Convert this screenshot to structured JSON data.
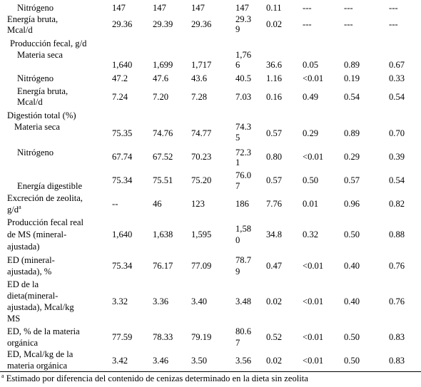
{
  "rows": [
    {
      "label": [
        "Nitrógeno"
      ],
      "c1": "147",
      "c2": "147",
      "c3": "147",
      "c4": [
        "147"
      ],
      "sem": "0.11",
      "p1": "---",
      "p2": "---",
      "p3": "---"
    },
    {
      "label": [
        "Energía bruta,",
        "Mcal/d"
      ],
      "c1": "29.36",
      "c2": "29.39",
      "c3": "29.36",
      "c4": [
        "29.3",
        "9"
      ],
      "sem": "0.02",
      "p1": "---",
      "p2": "---",
      "p3": "---"
    },
    {
      "label": [
        "Producción fecal, g/d"
      ],
      "c1": "",
      "c2": "",
      "c3": "",
      "c4": [
        ""
      ],
      "sem": "",
      "p1": "",
      "p2": "",
      "p3": ""
    },
    {
      "label": [
        "Materia seca"
      ],
      "c1": "1,640",
      "c2": "1,699",
      "c3": "1,717",
      "c4": [
        "1,76",
        "6"
      ],
      "sem": "36.6",
      "p1": "0.05",
      "p2": "0.89",
      "p3": "0.67"
    },
    {
      "label": [
        "Nitrógeno"
      ],
      "c1": "47.2",
      "c2": "47.6",
      "c3": "43.6",
      "c4": [
        "40.5"
      ],
      "sem": "1.16",
      "p1": "<0.01",
      "p2": "0.19",
      "p3": "0.33"
    },
    {
      "label": [
        "Energía bruta,",
        "Mcal/d"
      ],
      "c1": "7.24",
      "c2": "7.20",
      "c3": "7.28",
      "c4": [
        "7.03"
      ],
      "sem": "0.16",
      "p1": "0.49",
      "p2": "0.54",
      "p3": "0.54"
    },
    {
      "label": [
        "Digestión total (%)"
      ],
      "c1": "",
      "c2": "",
      "c3": "",
      "c4": [
        ""
      ],
      "sem": "",
      "p1": "",
      "p2": "",
      "p3": ""
    },
    {
      "label": [
        "Materia seca"
      ],
      "c1": "75.35",
      "c2": "74.76",
      "c3": "74.77",
      "c4": [
        "74.3",
        "5"
      ],
      "sem": "0.57",
      "p1": "0.29",
      "p2": "0.89",
      "p3": "0.70"
    },
    {
      "label": [
        "Nitrógeno"
      ],
      "c1": "67.74",
      "c2": "67.52",
      "c3": "70.23",
      "c4": [
        "72.3",
        "1"
      ],
      "sem": "0.80",
      "p1": "<0.01",
      "p2": "0.29",
      "p3": "0.39"
    },
    {
      "label": [
        "Energía digestible"
      ],
      "c1": "75.34",
      "c2": "75.51",
      "c3": "75.20",
      "c4": [
        "76.0",
        "7"
      ],
      "sem": "0.57",
      "p1": "0.50",
      "p2": "0.57",
      "p3": "0.54"
    },
    {
      "label": [
        "Excreción de zeolita,",
        "g/d"
      ],
      "label_sup": "a",
      "c1": "--",
      "c2": "46",
      "c3": "123",
      "c4": [
        "186"
      ],
      "sem": "7.76",
      "p1": "0.01",
      "p2": "0.96",
      "p3": "0.82"
    },
    {
      "label": [
        "Producción fecal real",
        "de MS (mineral-",
        "ajustada)"
      ],
      "c1": "1,640",
      "c2": "1,638",
      "c3": "1,595",
      "c4": [
        "1,58",
        "0"
      ],
      "sem": "34.8",
      "p1": "0.32",
      "p2": "0.50",
      "p3": "0.88"
    },
    {
      "label": [
        "ED (mineral-",
        "ajustada), %"
      ],
      "c1": "75.34",
      "c2": "76.17",
      "c3": "77.09",
      "c4": [
        "78.7",
        "9"
      ],
      "sem": "0.47",
      "p1": "<0.01",
      "p2": "0.40",
      "p3": "0.76"
    },
    {
      "label": [
        "ED de la",
        "dieta(mineral-",
        "ajustada),  Mcal/kg",
        "MS"
      ],
      "c1": "3.32",
      "c2": "3.36",
      "c3": "3.40",
      "c4": [
        "3.48"
      ],
      "sem": "0.02",
      "p1": "<0.01",
      "p2": "0.40",
      "p3": "0.76"
    },
    {
      "label": [
        "ED, % de la materia",
        "orgánica"
      ],
      "c1": "77.59",
      "c2": "78.33",
      "c3": "79.19",
      "c4": [
        "80.6",
        "7"
      ],
      "sem": "0.52",
      "p1": "<0.01",
      "p2": "0.50",
      "p3": "0.83"
    },
    {
      "label": [
        "ED, Mcal/kg de la",
        "materia orgánica"
      ],
      "c1": "3.42",
      "c2": "3.46",
      "c3": "3.50",
      "c4": [
        "3.56"
      ],
      "sem": "0.02",
      "p1": "<0.01",
      "p2": "0.50",
      "p3": "0.83"
    }
  ],
  "footnote": {
    "mark": "a",
    "text": " Estimado por diferencia del contenido de cenizas determinado en la dieta sin zeolita"
  }
}
